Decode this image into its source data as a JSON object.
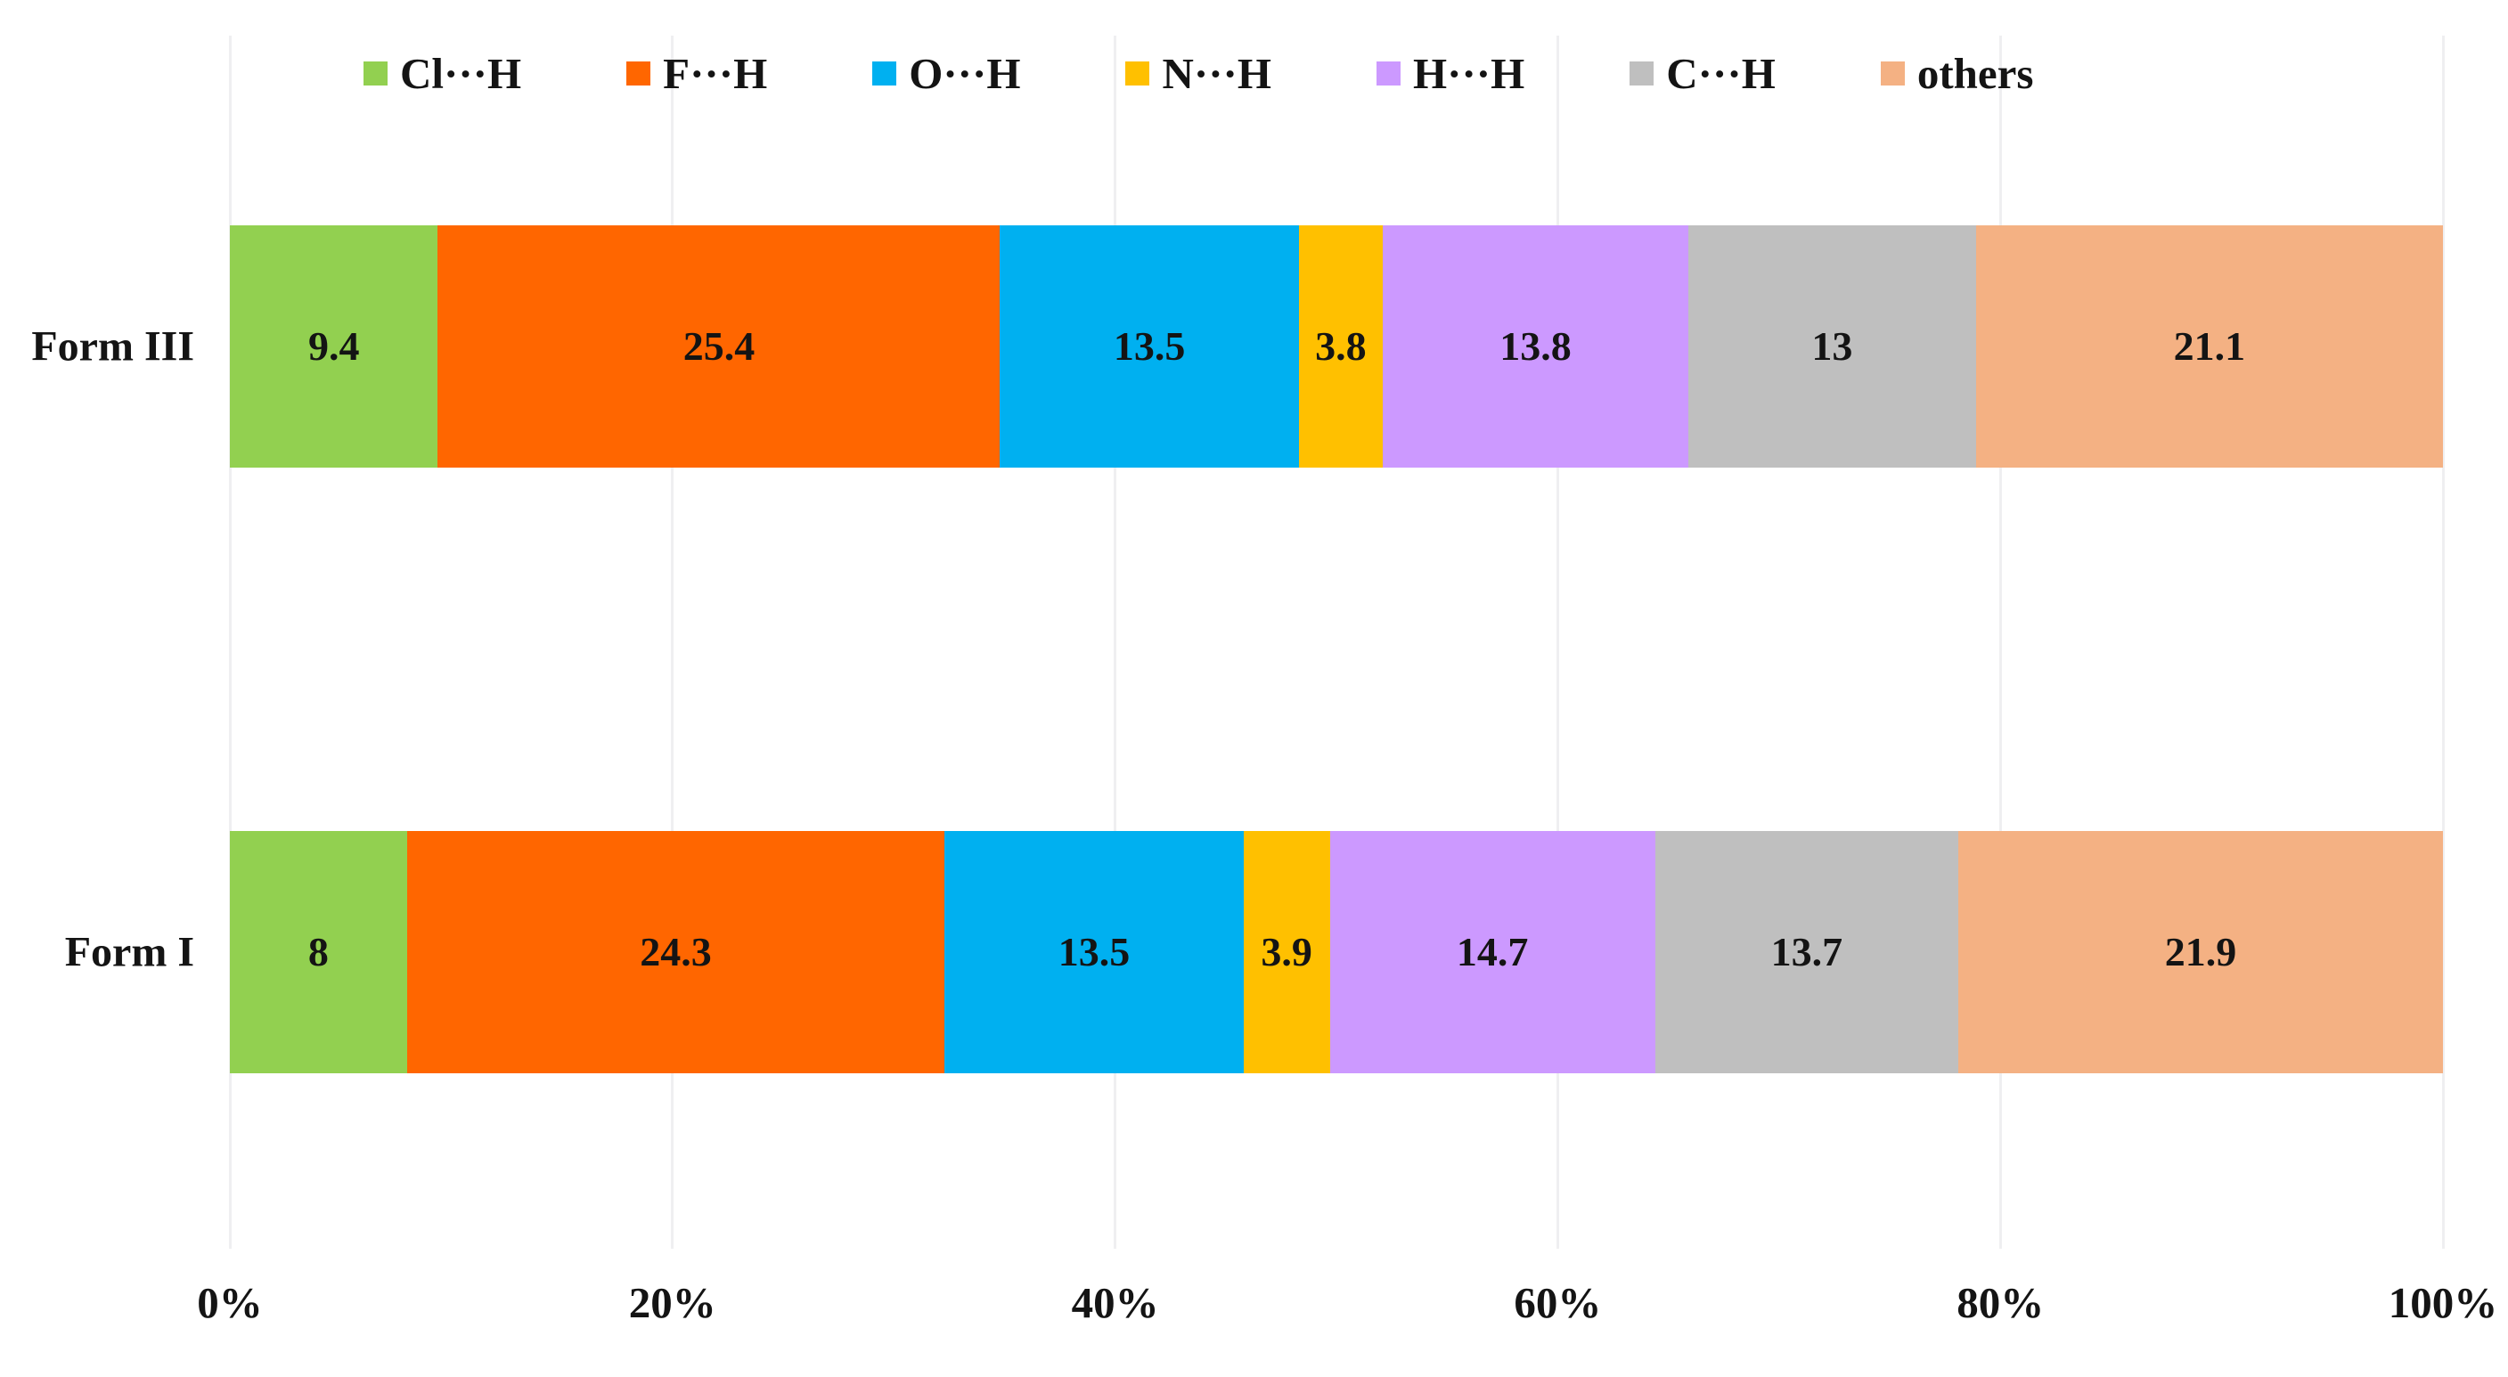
{
  "chart_data": {
    "type": "bar",
    "orientation": "horizontal-stacked",
    "title": "",
    "xlabel": "",
    "ylabel": "",
    "xlim": [
      0,
      100
    ],
    "grid": true,
    "legend_position": "top",
    "categories": [
      "Form III",
      "Form I"
    ],
    "series": [
      {
        "name": "Cl···H",
        "color": "#92D050",
        "values": [
          9.4,
          8
        ]
      },
      {
        "name": "F···H",
        "color": "#FF6600",
        "values": [
          25.4,
          24.3
        ]
      },
      {
        "name": "O···H",
        "color": "#00B0F0",
        "values": [
          13.5,
          13.5
        ]
      },
      {
        "name": "N···H",
        "color": "#FFC000",
        "values": [
          3.8,
          3.9
        ]
      },
      {
        "name": "H···H",
        "color": "#CC99FF",
        "values": [
          13.8,
          14.7
        ]
      },
      {
        "name": "C···H",
        "color": "#BFBFBF",
        "values": [
          13,
          13.7
        ]
      },
      {
        "name": "others",
        "color": "#F4B183",
        "values": [
          21.1,
          21.9
        ]
      }
    ],
    "value_labels": [
      [
        "9.4",
        "25.4",
        "13.5",
        "3.8",
        "13.8",
        "13",
        "21.1"
      ],
      [
        "8",
        "24.3",
        "13.5",
        "3.9",
        "14.7",
        "13.7",
        "21.9"
      ]
    ],
    "x_ticks": [
      "0%",
      "20%",
      "40%",
      "60%",
      "80%",
      "100%"
    ],
    "text_color": "#141414",
    "gridline_color": "#efeff1"
  }
}
